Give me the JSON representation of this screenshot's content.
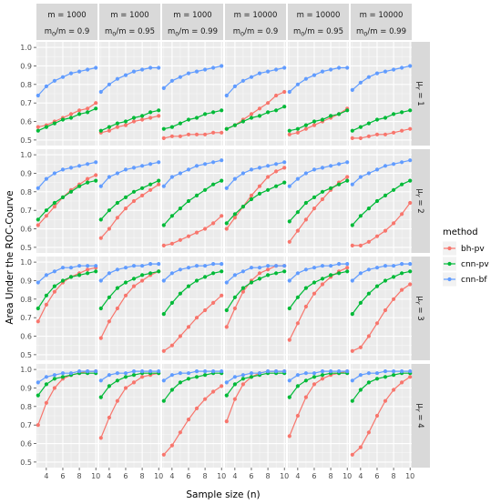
{
  "chart_data": {
    "type": "line",
    "xlabel": "Sample size (n)",
    "ylabel": "Area Under the ROC-Courve",
    "x": [
      3,
      4,
      5,
      6,
      7,
      8,
      9,
      10
    ],
    "x_ticks": [
      "4",
      "6",
      "8",
      "10"
    ],
    "xlim": [
      2.8,
      10.2
    ],
    "y_ticks": [
      "0.5",
      "0.6",
      "0.7",
      "0.8",
      "0.9",
      "1.0"
    ],
    "ylim": [
      0.47,
      1.03
    ],
    "grid": true,
    "legend": {
      "title": "method",
      "position": "right",
      "entries": [
        {
          "label": "bh-pv",
          "color": "#F8766D"
        },
        {
          "label": "cnn-pv",
          "color": "#00BA38"
        },
        {
          "label": "cnn-bf",
          "color": "#619CFF"
        }
      ]
    },
    "columns": [
      {
        "line1": "m = 1000",
        "line2_main": "m",
        "line2_sub": "0",
        "line2_rest": "/m = 0.9"
      },
      {
        "line1": "m = 1000",
        "line2_main": "m",
        "line2_sub": "0",
        "line2_rest": "/m = 0.95"
      },
      {
        "line1": "m = 1000",
        "line2_main": "m",
        "line2_sub": "0",
        "line2_rest": "/m = 0.99"
      },
      {
        "line1": "m = 10000",
        "line2_main": "m",
        "line2_sub": "0",
        "line2_rest": "/m = 0.9"
      },
      {
        "line1": "m = 10000",
        "line2_main": "m",
        "line2_sub": "0",
        "line2_rest": "/m = 0.95"
      },
      {
        "line1": "m = 10000",
        "line2_main": "m",
        "line2_sub": "0",
        "line2_rest": "/m = 0.99"
      }
    ],
    "rows": [
      {
        "main": "μ",
        "sub": "Y",
        "rest": " = 1"
      },
      {
        "main": "μ",
        "sub": "Y",
        "rest": " = 2"
      },
      {
        "main": "μ",
        "sub": "Y",
        "rest": " = 3"
      },
      {
        "main": "μ",
        "sub": "Y",
        "rest": " = 4"
      }
    ],
    "panels": [
      [
        {
          "bh-pv": [
            0.57,
            0.58,
            0.6,
            0.62,
            0.64,
            0.66,
            0.67,
            0.7
          ],
          "cnn-pv": [
            0.55,
            0.57,
            0.59,
            0.61,
            0.62,
            0.64,
            0.65,
            0.67
          ],
          "cnn-bf": [
            0.74,
            0.79,
            0.82,
            0.84,
            0.86,
            0.87,
            0.88,
            0.89
          ]
        },
        {
          "bh-pv": [
            0.54,
            0.55,
            0.57,
            0.58,
            0.6,
            0.61,
            0.62,
            0.63
          ],
          "cnn-pv": [
            0.55,
            0.57,
            0.59,
            0.6,
            0.62,
            0.63,
            0.65,
            0.66
          ],
          "cnn-bf": [
            0.76,
            0.8,
            0.83,
            0.85,
            0.87,
            0.88,
            0.89,
            0.89
          ]
        },
        {
          "bh-pv": [
            0.51,
            0.52,
            0.52,
            0.53,
            0.53,
            0.53,
            0.54,
            0.54
          ],
          "cnn-pv": [
            0.56,
            0.57,
            0.59,
            0.61,
            0.62,
            0.64,
            0.65,
            0.66
          ],
          "cnn-bf": [
            0.78,
            0.82,
            0.84,
            0.86,
            0.87,
            0.88,
            0.89,
            0.9
          ]
        },
        {
          "bh-pv": [
            0.56,
            0.58,
            0.61,
            0.64,
            0.67,
            0.7,
            0.74,
            0.76
          ],
          "cnn-pv": [
            0.56,
            0.58,
            0.6,
            0.62,
            0.63,
            0.65,
            0.66,
            0.68
          ],
          "cnn-bf": [
            0.74,
            0.79,
            0.82,
            0.84,
            0.86,
            0.87,
            0.88,
            0.89
          ]
        },
        {
          "bh-pv": [
            0.53,
            0.54,
            0.56,
            0.58,
            0.6,
            0.62,
            0.64,
            0.67
          ],
          "cnn-pv": [
            0.55,
            0.56,
            0.58,
            0.6,
            0.61,
            0.63,
            0.64,
            0.66
          ],
          "cnn-bf": [
            0.76,
            0.8,
            0.83,
            0.85,
            0.87,
            0.88,
            0.89,
            0.89
          ]
        },
        {
          "bh-pv": [
            0.51,
            0.51,
            0.52,
            0.53,
            0.53,
            0.54,
            0.55,
            0.56
          ],
          "cnn-pv": [
            0.55,
            0.57,
            0.59,
            0.61,
            0.62,
            0.64,
            0.65,
            0.66
          ],
          "cnn-bf": [
            0.77,
            0.81,
            0.84,
            0.86,
            0.87,
            0.88,
            0.89,
            0.9
          ]
        }
      ],
      [
        {
          "bh-pv": [
            0.62,
            0.67,
            0.72,
            0.77,
            0.81,
            0.84,
            0.87,
            0.89
          ],
          "cnn-pv": [
            0.65,
            0.7,
            0.74,
            0.77,
            0.8,
            0.83,
            0.85,
            0.86
          ],
          "cnn-bf": [
            0.82,
            0.87,
            0.9,
            0.92,
            0.93,
            0.94,
            0.95,
            0.96
          ]
        },
        {
          "bh-pv": [
            0.55,
            0.6,
            0.66,
            0.71,
            0.75,
            0.78,
            0.81,
            0.84
          ],
          "cnn-pv": [
            0.65,
            0.7,
            0.74,
            0.77,
            0.8,
            0.82,
            0.84,
            0.86
          ],
          "cnn-bf": [
            0.83,
            0.88,
            0.9,
            0.92,
            0.93,
            0.94,
            0.95,
            0.96
          ]
        },
        {
          "bh-pv": [
            0.51,
            0.52,
            0.54,
            0.56,
            0.58,
            0.6,
            0.63,
            0.67
          ],
          "cnn-pv": [
            0.62,
            0.67,
            0.71,
            0.75,
            0.78,
            0.81,
            0.84,
            0.86
          ],
          "cnn-bf": [
            0.83,
            0.88,
            0.9,
            0.92,
            0.94,
            0.95,
            0.96,
            0.97
          ]
        },
        {
          "bh-pv": [
            0.6,
            0.66,
            0.72,
            0.78,
            0.83,
            0.88,
            0.91,
            0.93
          ],
          "cnn-pv": [
            0.63,
            0.68,
            0.72,
            0.76,
            0.79,
            0.81,
            0.83,
            0.85
          ],
          "cnn-bf": [
            0.82,
            0.87,
            0.9,
            0.92,
            0.93,
            0.94,
            0.95,
            0.96
          ]
        },
        {
          "bh-pv": [
            0.53,
            0.59,
            0.65,
            0.71,
            0.76,
            0.81,
            0.85,
            0.88
          ],
          "cnn-pv": [
            0.64,
            0.69,
            0.74,
            0.77,
            0.8,
            0.82,
            0.84,
            0.86
          ],
          "cnn-bf": [
            0.83,
            0.87,
            0.9,
            0.92,
            0.93,
            0.94,
            0.95,
            0.96
          ]
        },
        {
          "bh-pv": [
            0.51,
            0.51,
            0.53,
            0.56,
            0.59,
            0.63,
            0.68,
            0.74
          ],
          "cnn-pv": [
            0.62,
            0.67,
            0.71,
            0.75,
            0.78,
            0.81,
            0.84,
            0.86
          ],
          "cnn-bf": [
            0.84,
            0.88,
            0.9,
            0.92,
            0.94,
            0.95,
            0.96,
            0.97
          ]
        }
      ],
      [
        {
          "bh-pv": [
            0.68,
            0.77,
            0.84,
            0.89,
            0.92,
            0.94,
            0.96,
            0.97
          ],
          "cnn-pv": [
            0.75,
            0.82,
            0.87,
            0.9,
            0.92,
            0.93,
            0.94,
            0.95
          ],
          "cnn-bf": [
            0.89,
            0.93,
            0.95,
            0.97,
            0.97,
            0.98,
            0.98,
            0.98
          ]
        },
        {
          "bh-pv": [
            0.59,
            0.68,
            0.75,
            0.82,
            0.87,
            0.9,
            0.93,
            0.95
          ],
          "cnn-pv": [
            0.75,
            0.81,
            0.86,
            0.89,
            0.91,
            0.93,
            0.94,
            0.95
          ],
          "cnn-bf": [
            0.9,
            0.94,
            0.96,
            0.97,
            0.98,
            0.98,
            0.99,
            0.99
          ]
        },
        {
          "bh-pv": [
            0.52,
            0.55,
            0.6,
            0.65,
            0.7,
            0.74,
            0.78,
            0.82
          ],
          "cnn-pv": [
            0.72,
            0.78,
            0.83,
            0.87,
            0.9,
            0.92,
            0.94,
            0.95
          ],
          "cnn-bf": [
            0.9,
            0.94,
            0.96,
            0.97,
            0.98,
            0.98,
            0.99,
            0.99
          ]
        },
        {
          "bh-pv": [
            0.65,
            0.75,
            0.84,
            0.9,
            0.94,
            0.96,
            0.98,
            0.98
          ],
          "cnn-pv": [
            0.74,
            0.81,
            0.86,
            0.89,
            0.91,
            0.93,
            0.94,
            0.95
          ],
          "cnn-bf": [
            0.89,
            0.93,
            0.95,
            0.97,
            0.97,
            0.98,
            0.98,
            0.98
          ]
        },
        {
          "bh-pv": [
            0.58,
            0.67,
            0.76,
            0.83,
            0.88,
            0.92,
            0.95,
            0.97
          ],
          "cnn-pv": [
            0.75,
            0.81,
            0.86,
            0.89,
            0.91,
            0.93,
            0.94,
            0.95
          ],
          "cnn-bf": [
            0.9,
            0.94,
            0.96,
            0.97,
            0.98,
            0.98,
            0.99,
            0.99
          ]
        },
        {
          "bh-pv": [
            0.52,
            0.54,
            0.6,
            0.67,
            0.74,
            0.8,
            0.85,
            0.88
          ],
          "cnn-pv": [
            0.72,
            0.78,
            0.83,
            0.87,
            0.9,
            0.92,
            0.94,
            0.95
          ],
          "cnn-bf": [
            0.9,
            0.94,
            0.96,
            0.97,
            0.98,
            0.98,
            0.99,
            0.99
          ]
        }
      ],
      [
        {
          "bh-pv": [
            0.7,
            0.82,
            0.9,
            0.95,
            0.97,
            0.98,
            0.99,
            0.99
          ],
          "cnn-pv": [
            0.86,
            0.92,
            0.95,
            0.96,
            0.97,
            0.98,
            0.98,
            0.98
          ],
          "cnn-bf": [
            0.93,
            0.96,
            0.97,
            0.98,
            0.98,
            0.99,
            0.99,
            0.99
          ]
        },
        {
          "bh-pv": [
            0.63,
            0.74,
            0.83,
            0.9,
            0.93,
            0.96,
            0.97,
            0.98
          ],
          "cnn-pv": [
            0.85,
            0.91,
            0.94,
            0.96,
            0.97,
            0.98,
            0.98,
            0.98
          ],
          "cnn-bf": [
            0.94,
            0.97,
            0.98,
            0.98,
            0.99,
            0.99,
            0.99,
            0.99
          ]
        },
        {
          "bh-pv": [
            0.54,
            0.59,
            0.66,
            0.73,
            0.79,
            0.84,
            0.88,
            0.91
          ],
          "cnn-pv": [
            0.83,
            0.89,
            0.93,
            0.95,
            0.96,
            0.97,
            0.98,
            0.98
          ],
          "cnn-bf": [
            0.94,
            0.97,
            0.98,
            0.98,
            0.99,
            0.99,
            0.99,
            0.99
          ]
        },
        {
          "bh-pv": [
            0.72,
            0.84,
            0.92,
            0.96,
            0.98,
            0.99,
            0.99,
            0.99
          ],
          "cnn-pv": [
            0.86,
            0.92,
            0.95,
            0.96,
            0.97,
            0.98,
            0.98,
            0.98
          ],
          "cnn-bf": [
            0.93,
            0.96,
            0.97,
            0.98,
            0.98,
            0.99,
            0.99,
            0.99
          ]
        },
        {
          "bh-pv": [
            0.64,
            0.75,
            0.85,
            0.92,
            0.95,
            0.97,
            0.98,
            0.99
          ],
          "cnn-pv": [
            0.85,
            0.91,
            0.94,
            0.96,
            0.97,
            0.98,
            0.98,
            0.98
          ],
          "cnn-bf": [
            0.94,
            0.97,
            0.98,
            0.98,
            0.99,
            0.99,
            0.99,
            0.99
          ]
        },
        {
          "bh-pv": [
            0.54,
            0.58,
            0.66,
            0.75,
            0.83,
            0.89,
            0.93,
            0.96
          ],
          "cnn-pv": [
            0.83,
            0.89,
            0.93,
            0.95,
            0.96,
            0.97,
            0.98,
            0.98
          ],
          "cnn-bf": [
            0.94,
            0.97,
            0.98,
            0.98,
            0.99,
            0.99,
            0.99,
            0.99
          ]
        }
      ]
    ]
  }
}
